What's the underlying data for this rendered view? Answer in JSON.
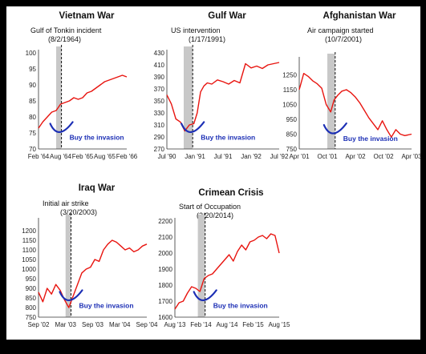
{
  "colors": {
    "series": "#e8140f",
    "shade": "#c8c8c8",
    "annotation": "#1c2fb5",
    "frame": "#000000"
  },
  "chart_data": [
    {
      "type": "line",
      "title": "Vietnam War",
      "event_label": [
        "Gulf of Tonkin incident",
        "(8/2/1964)"
      ],
      "callout": "Buy the invasion",
      "ylim": [
        70,
        100
      ],
      "yticks": [
        "100",
        "95",
        "90",
        "85",
        "80",
        "75",
        "70"
      ],
      "ytick_values": [
        100,
        95,
        90,
        85,
        80,
        75,
        70
      ],
      "xticks": [
        "Feb '64",
        "Aug '64",
        "Feb '65",
        "Aug '65",
        "Feb '66"
      ],
      "x": [
        0,
        0.05,
        0.1,
        0.15,
        0.2,
        0.25,
        0.3,
        0.35,
        0.4,
        0.45,
        0.5,
        0.55,
        0.6,
        0.65,
        0.7,
        0.75,
        0.8,
        0.85,
        0.9,
        0.95,
        1
      ],
      "values": [
        76.5,
        78.5,
        80,
        81.5,
        82,
        84,
        84.5,
        85,
        86,
        85.5,
        86,
        87.5,
        88,
        89,
        90,
        91,
        91.5,
        92,
        92.5,
        93,
        92.5
      ],
      "shade": [
        0.2,
        0.26
      ],
      "event_x": 0.26
    },
    {
      "type": "line",
      "title": "Gulf War",
      "event_label": [
        "US intervention",
        "(1/17/1991)"
      ],
      "callout": "Buy the invasion",
      "ylim": [
        270,
        430
      ],
      "yticks": [
        "430",
        "410",
        "390",
        "370",
        "350",
        "330",
        "310",
        "290",
        "270"
      ],
      "ytick_values": [
        430,
        410,
        390,
        370,
        350,
        330,
        310,
        290,
        270
      ],
      "xticks": [
        "Jul '90",
        "Jan '91",
        "Jul '91",
        "Jan '92",
        "Jul '92"
      ],
      "x": [
        0,
        0.04,
        0.08,
        0.12,
        0.16,
        0.2,
        0.24,
        0.27,
        0.3,
        0.33,
        0.36,
        0.4,
        0.45,
        0.5,
        0.55,
        0.6,
        0.65,
        0.7,
        0.75,
        0.8,
        0.85,
        0.9,
        0.95,
        1
      ],
      "values": [
        360,
        345,
        320,
        315,
        300,
        310,
        312,
        330,
        365,
        375,
        380,
        378,
        385,
        382,
        378,
        384,
        380,
        412,
        405,
        408,
        404,
        410,
        412,
        414
      ],
      "shade": [
        0.15,
        0.23
      ],
      "event_x": 0.23
    },
    {
      "type": "line",
      "title": "Afghanistan War",
      "event_label": [
        "Air campaign started",
        "(10/7/2001)"
      ],
      "callout": "Buy the invasion",
      "ylim": [
        750,
        1350
      ],
      "yticks": [
        "1250",
        "1150",
        "1050",
        "950",
        "850",
        "750"
      ],
      "ytick_values": [
        1250,
        1150,
        1050,
        950,
        850,
        750
      ],
      "xticks": [
        "Apr '01",
        "Oct '01",
        "Apr '02",
        "Oct '02",
        "Apr '03"
      ],
      "x": [
        0,
        0.04,
        0.08,
        0.12,
        0.16,
        0.2,
        0.24,
        0.28,
        0.31,
        0.34,
        0.38,
        0.42,
        0.46,
        0.5,
        0.54,
        0.58,
        0.62,
        0.66,
        0.7,
        0.74,
        0.78,
        0.82,
        0.86,
        0.9,
        0.94,
        1
      ],
      "values": [
        1150,
        1260,
        1240,
        1210,
        1190,
        1160,
        1050,
        1000,
        1080,
        1110,
        1140,
        1150,
        1130,
        1100,
        1060,
        1010,
        960,
        920,
        880,
        940,
        880,
        830,
        880,
        850,
        840,
        850
      ],
      "shade": [
        0.25,
        0.32
      ],
      "event_x": 0.32
    },
    {
      "type": "line",
      "title": "Iraq War",
      "event_label": [
        "Initial air strike",
        "(3/20/2003)"
      ],
      "callout": "Buy the invasion",
      "ylim": [
        750,
        1250
      ],
      "yticks": [
        "1200",
        "1150",
        "1100",
        "1050",
        "1000",
        "950",
        "900",
        "850",
        "800",
        "750"
      ],
      "ytick_values": [
        1200,
        1150,
        1100,
        1050,
        1000,
        950,
        900,
        850,
        800,
        750
      ],
      "xticks": [
        "Sep '02",
        "Mar '03",
        "Sep '03",
        "Mar '04",
        "Sep '04"
      ],
      "x": [
        0,
        0.04,
        0.08,
        0.12,
        0.16,
        0.2,
        0.24,
        0.28,
        0.32,
        0.36,
        0.4,
        0.44,
        0.48,
        0.52,
        0.56,
        0.6,
        0.64,
        0.68,
        0.72,
        0.76,
        0.8,
        0.84,
        0.88,
        0.92,
        0.96,
        1
      ],
      "values": [
        880,
        830,
        900,
        870,
        920,
        890,
        840,
        800,
        860,
        920,
        980,
        1000,
        1010,
        1050,
        1040,
        1100,
        1130,
        1150,
        1140,
        1120,
        1100,
        1110,
        1090,
        1100,
        1120,
        1130
      ],
      "shade": [
        0.25,
        0.3
      ],
      "event_x": 0.3
    },
    {
      "type": "line",
      "title": "Crimean Crisis",
      "event_label": [
        "Start of Occupation",
        "(2/20/2014)"
      ],
      "callout": "Buy the invasion",
      "ylim": [
        1600,
        2200
      ],
      "yticks": [
        "2200",
        "2100",
        "2000",
        "1900",
        "1800",
        "1700",
        "1600"
      ],
      "ytick_values": [
        2200,
        2100,
        2000,
        1900,
        1800,
        1700,
        1600
      ],
      "xticks": [
        "Aug '13",
        "Feb '14",
        "Aug '14",
        "Feb '15",
        "Aug '15"
      ],
      "x": [
        0,
        0.04,
        0.08,
        0.12,
        0.16,
        0.2,
        0.24,
        0.28,
        0.32,
        0.36,
        0.4,
        0.44,
        0.48,
        0.52,
        0.56,
        0.6,
        0.64,
        0.68,
        0.72,
        0.76,
        0.8,
        0.84,
        0.88,
        0.92,
        0.96,
        1
      ],
      "values": [
        1650,
        1690,
        1700,
        1750,
        1790,
        1780,
        1760,
        1840,
        1860,
        1870,
        1900,
        1930,
        1960,
        1990,
        1950,
        2010,
        2050,
        2020,
        2070,
        2080,
        2100,
        2110,
        2090,
        2120,
        2110,
        2000
      ],
      "shade": [
        0.22,
        0.29
      ],
      "event_x": 0.29
    }
  ]
}
